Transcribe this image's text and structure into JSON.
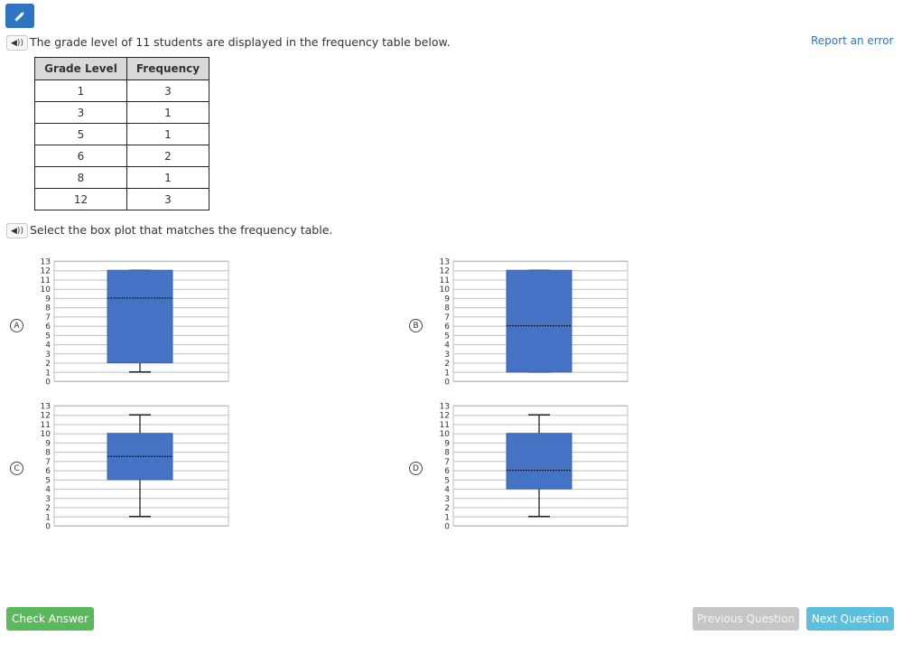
{
  "header": {
    "report_error": "Report an error"
  },
  "question": {
    "prompt": "The grade level of 11 students are displayed in the frequency table below.",
    "instruction": "Select the box plot that matches the frequency table."
  },
  "table": {
    "headers": [
      "Grade Level",
      "Frequency"
    ],
    "rows": [
      [
        "1",
        "3"
      ],
      [
        "3",
        "1"
      ],
      [
        "5",
        "1"
      ],
      [
        "6",
        "2"
      ],
      [
        "8",
        "1"
      ],
      [
        "12",
        "3"
      ]
    ]
  },
  "choices": [
    {
      "letter": "A",
      "chart_data": {
        "type": "box",
        "min": 1,
        "q1": 2,
        "median": 9,
        "q3": 12,
        "max": 12,
        "ylim": [
          0,
          13
        ]
      }
    },
    {
      "letter": "B",
      "chart_data": {
        "type": "box",
        "min": 1,
        "q1": 1,
        "median": 6,
        "q3": 12,
        "max": 12,
        "ylim": [
          0,
          13
        ]
      }
    },
    {
      "letter": "C",
      "chart_data": {
        "type": "box",
        "min": 1,
        "q1": 5,
        "median": 7.5,
        "q3": 10,
        "max": 12,
        "ylim": [
          0,
          13
        ]
      }
    },
    {
      "letter": "D",
      "chart_data": {
        "type": "box",
        "min": 1,
        "q1": 4,
        "median": 6,
        "q3": 10,
        "max": 12,
        "ylim": [
          0,
          13
        ]
      }
    }
  ],
  "chart_data": [
    {
      "type": "box",
      "label": "A",
      "min": 1,
      "q1": 2,
      "median": 9,
      "q3": 12,
      "max": 12,
      "ylim": [
        0,
        13
      ],
      "yticks": [
        0,
        1,
        2,
        3,
        4,
        5,
        6,
        7,
        8,
        9,
        10,
        11,
        12,
        13
      ]
    },
    {
      "type": "box",
      "label": "B",
      "min": 1,
      "q1": 1,
      "median": 6,
      "q3": 12,
      "max": 12,
      "ylim": [
        0,
        13
      ],
      "yticks": [
        0,
        1,
        2,
        3,
        4,
        5,
        6,
        7,
        8,
        9,
        10,
        11,
        12,
        13
      ]
    },
    {
      "type": "box",
      "label": "C",
      "min": 1,
      "q1": 5,
      "median": 7.5,
      "q3": 10,
      "max": 12,
      "ylim": [
        0,
        13
      ],
      "yticks": [
        0,
        1,
        2,
        3,
        4,
        5,
        6,
        7,
        8,
        9,
        10,
        11,
        12,
        13
      ]
    },
    {
      "type": "box",
      "label": "D",
      "min": 1,
      "q1": 4,
      "median": 6,
      "q3": 10,
      "max": 12,
      "ylim": [
        0,
        13
      ],
      "yticks": [
        0,
        1,
        2,
        3,
        4,
        5,
        6,
        7,
        8,
        9,
        10,
        11,
        12,
        13
      ]
    }
  ],
  "colors": {
    "box_fill": "#4472c4",
    "primary": "#2f74c0",
    "check": "#5cb85c",
    "next": "#5bc0de",
    "prev": "#c6c6c6"
  },
  "icons": {
    "edit": "pencil-icon",
    "audio": "speaker-icon"
  },
  "buttons": {
    "check": "Check Answer",
    "previous": "Previous Question",
    "next": "Next Question"
  }
}
